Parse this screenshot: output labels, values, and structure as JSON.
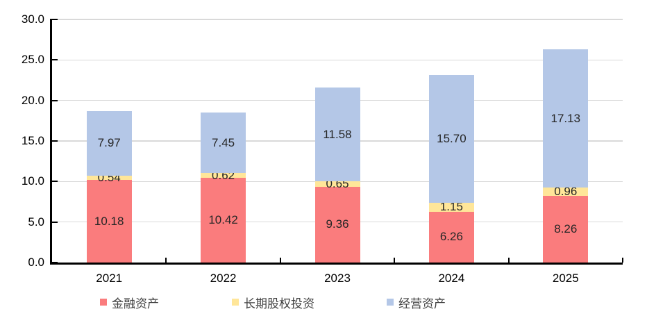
{
  "chart_data": {
    "type": "bar",
    "stacked": true,
    "title": "",
    "xlabel": "",
    "ylabel": "",
    "categories": [
      "2021",
      "2022",
      "2023",
      "2024",
      "2025"
    ],
    "series": [
      {
        "name": "金融资产",
        "color": "#FA7C7D",
        "values": [
          10.18,
          10.42,
          9.36,
          6.26,
          8.26
        ]
      },
      {
        "name": "长期股权投资",
        "color": "#FFE699",
        "values": [
          0.54,
          0.62,
          0.65,
          1.15,
          0.96
        ]
      },
      {
        "name": "经营资产",
        "color": "#B4C7E7",
        "values": [
          7.97,
          7.45,
          11.58,
          15.7,
          17.13
        ]
      }
    ],
    "ylim": [
      0,
      30
    ],
    "ytick_step": 5,
    "ytick_labels": [
      "0.0",
      "5.0",
      "10.0",
      "15.0",
      "20.0",
      "25.0",
      "30.0"
    ],
    "value_decimals": 2,
    "grid": true,
    "legend_position": "bottom",
    "axis_color": "#000000",
    "gridline_color": "#d9d9d9",
    "data_label_color": "#262626",
    "background_color": "#ffffff"
  }
}
